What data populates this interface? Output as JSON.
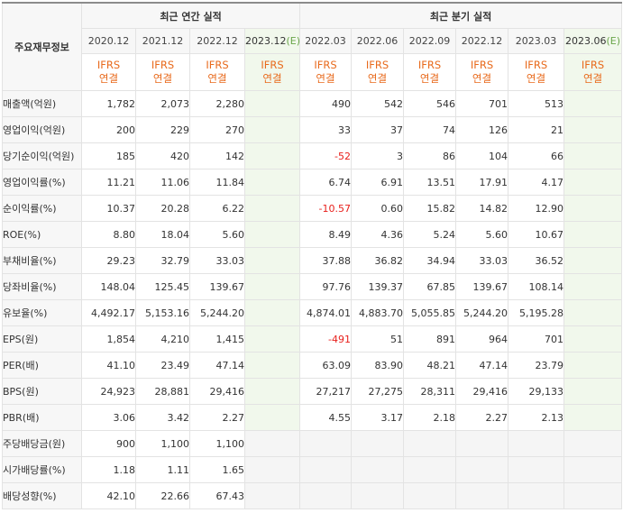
{
  "header": {
    "row_title": "주요재무정보",
    "annual_group": "최근 연간 실적",
    "quarter_group": "최근 분기 실적",
    "ifrs_label_top": "IFRS",
    "ifrs_label_bottom": "연결",
    "estimate_mark": "(E)"
  },
  "annual_periods": [
    "2020.12",
    "2021.12",
    "2022.12",
    "2023.12"
  ],
  "quarter_periods": [
    "2022.03",
    "2022.06",
    "2022.09",
    "2022.12",
    "2023.03",
    "2023.06"
  ],
  "rows": [
    {
      "label": "매출액(억원)",
      "annual": [
        "1,782",
        "2,073",
        "2,280",
        ""
      ],
      "quarter": [
        "490",
        "542",
        "546",
        "701",
        "513",
        ""
      ]
    },
    {
      "label": "영업이익(억원)",
      "annual": [
        "200",
        "229",
        "270",
        ""
      ],
      "quarter": [
        "33",
        "37",
        "74",
        "126",
        "21",
        ""
      ]
    },
    {
      "label": "당기순이익(억원)",
      "annual": [
        "185",
        "420",
        "142",
        ""
      ],
      "quarter": [
        "-52",
        "3",
        "86",
        "104",
        "66",
        ""
      ]
    },
    {
      "label": "영업이익률(%)",
      "annual": [
        "11.21",
        "11.06",
        "11.84",
        ""
      ],
      "quarter": [
        "6.74",
        "6.91",
        "13.51",
        "17.91",
        "4.17",
        ""
      ]
    },
    {
      "label": "순이익률(%)",
      "annual": [
        "10.37",
        "20.28",
        "6.22",
        ""
      ],
      "quarter": [
        "-10.57",
        "0.60",
        "15.82",
        "14.82",
        "12.90",
        ""
      ]
    },
    {
      "label": "ROE(%)",
      "annual": [
        "8.80",
        "18.04",
        "5.60",
        ""
      ],
      "quarter": [
        "8.49",
        "4.36",
        "5.24",
        "5.60",
        "10.67",
        ""
      ]
    },
    {
      "label": "부채비율(%)",
      "annual": [
        "29.23",
        "32.79",
        "33.03",
        ""
      ],
      "quarter": [
        "37.88",
        "36.82",
        "34.94",
        "33.03",
        "36.52",
        ""
      ]
    },
    {
      "label": "당좌비율(%)",
      "annual": [
        "148.04",
        "125.45",
        "139.67",
        ""
      ],
      "quarter": [
        "97.76",
        "139.37",
        "67.85",
        "139.67",
        "108.14",
        ""
      ]
    },
    {
      "label": "유보율(%)",
      "annual": [
        "4,492.17",
        "5,153.16",
        "5,244.20",
        ""
      ],
      "quarter": [
        "4,874.01",
        "4,883.70",
        "5,055.85",
        "5,244.20",
        "5,195.28",
        ""
      ]
    },
    {
      "label": "EPS(원)",
      "annual": [
        "1,854",
        "4,210",
        "1,415",
        ""
      ],
      "quarter": [
        "-491",
        "51",
        "891",
        "964",
        "701",
        ""
      ]
    },
    {
      "label": "PER(배)",
      "annual": [
        "41.10",
        "23.49",
        "47.14",
        ""
      ],
      "quarter": [
        "63.09",
        "83.90",
        "48.21",
        "47.14",
        "23.79",
        ""
      ]
    },
    {
      "label": "BPS(원)",
      "annual": [
        "24,923",
        "28,881",
        "29,416",
        ""
      ],
      "quarter": [
        "27,217",
        "27,275",
        "28,311",
        "29,416",
        "29,133",
        ""
      ]
    },
    {
      "label": "PBR(배)",
      "annual": [
        "3.06",
        "3.42",
        "2.27",
        ""
      ],
      "quarter": [
        "4.55",
        "3.17",
        "2.18",
        "2.27",
        "2.13",
        ""
      ]
    },
    {
      "label": "주당배당금(원)",
      "annual": [
        "900",
        "1,100",
        "1,100",
        ""
      ],
      "quarter": [
        "",
        "",
        "",
        "",
        "",
        ""
      ]
    },
    {
      "label": "시가배당률(%)",
      "annual": [
        "1.18",
        "1.11",
        "1.65",
        ""
      ],
      "quarter": [
        "",
        "",
        "",
        "",
        "",
        ""
      ]
    },
    {
      "label": "배당성향(%)",
      "annual": [
        "42.10",
        "22.66",
        "67.43",
        ""
      ],
      "quarter": [
        "",
        "",
        "",
        "",
        "",
        ""
      ]
    }
  ],
  "colors": {
    "ifrs_text": "#e86a1c",
    "negative_text": "#e8201c",
    "estimate_bg": "#f1f8ec",
    "estimate_mark": "#6aa64a"
  }
}
